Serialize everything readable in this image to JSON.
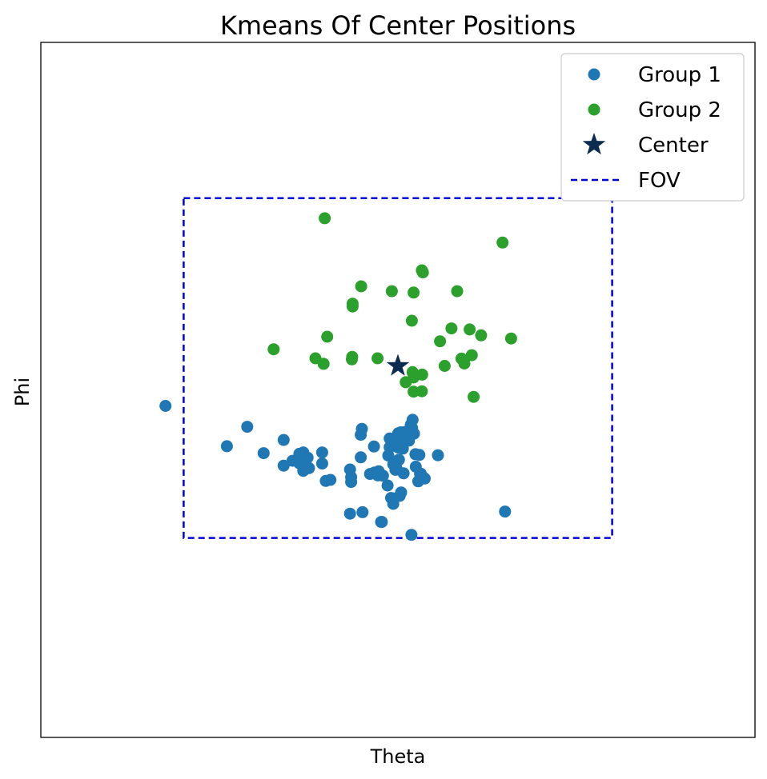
{
  "chart_data": {
    "type": "scatter",
    "title": "Kmeans Of Center Positions",
    "xlabel": "Theta",
    "ylabel": "Phi",
    "xlim": [
      -1,
      1
    ],
    "ylim": [
      -1,
      1
    ],
    "grid": false,
    "ticks": false,
    "legend_position": "top-right",
    "series": [
      {
        "name": "Group 1",
        "color": "#1f77b4",
        "marker": "circle",
        "points": [
          [
            -0.651,
            -0.046
          ],
          [
            -0.422,
            -0.106
          ],
          [
            -0.479,
            -0.162
          ],
          [
            -0.376,
            -0.182
          ],
          [
            -0.32,
            -0.144
          ],
          [
            -0.32,
            -0.218
          ],
          [
            -0.295,
            -0.204
          ],
          [
            -0.265,
            -0.18
          ],
          [
            -0.261,
            -0.195
          ],
          [
            -0.212,
            -0.18
          ],
          [
            -0.276,
            -0.184
          ],
          [
            -0.253,
            -0.195
          ],
          [
            -0.276,
            -0.211
          ],
          [
            -0.265,
            -0.233
          ],
          [
            -0.249,
            -0.225
          ],
          [
            -0.212,
            -0.212
          ],
          [
            -0.202,
            -0.262
          ],
          [
            -0.189,
            -0.259
          ],
          [
            -0.134,
            -0.229
          ],
          [
            -0.131,
            -0.251
          ],
          [
            -0.131,
            -0.265
          ],
          [
            -0.104,
            -0.194
          ],
          [
            -0.104,
            -0.129
          ],
          [
            -0.101,
            -0.112
          ],
          [
            -0.067,
            -0.163
          ],
          [
            -0.066,
            -0.238
          ],
          [
            -0.078,
            -0.242
          ],
          [
            -0.054,
            -0.234
          ],
          [
            -0.056,
            -0.246
          ],
          [
            -0.042,
            -0.247
          ],
          [
            -0.029,
            -0.275
          ],
          [
            -0.019,
            -0.311
          ],
          [
            -0.013,
            -0.328
          ],
          [
            -0.007,
            -0.23
          ],
          [
            -0.027,
            -0.189
          ],
          [
            -0.023,
            -0.165
          ],
          [
            -0.023,
            -0.14
          ],
          [
            -0.013,
            -0.214
          ],
          [
            0.001,
            -0.166
          ],
          [
            0.014,
            -0.169
          ],
          [
            0.003,
            -0.201
          ],
          [
            -0.004,
            -0.226
          ],
          [
            0.016,
            -0.24
          ],
          [
            0.031,
            -0.146
          ],
          [
            0.036,
            -0.1
          ],
          [
            0.041,
            -0.086
          ],
          [
            0.04,
            -0.11
          ],
          [
            0.045,
            -0.126
          ],
          [
            0.049,
            -0.185
          ],
          [
            0.02,
            -0.121
          ],
          [
            0.05,
            -0.221
          ],
          [
            0.062,
            -0.242
          ],
          [
            0.072,
            -0.253
          ],
          [
            0.075,
            -0.255
          ],
          [
            0.064,
            -0.241
          ],
          [
            0.057,
            -0.263
          ],
          [
            0.06,
            -0.187
          ],
          [
            0.005,
            -0.305
          ],
          [
            0.009,
            -0.295
          ],
          [
            -0.015,
            -0.312
          ],
          [
            -0.099,
            -0.352
          ],
          [
            -0.134,
            -0.356
          ],
          [
            -0.045,
            -0.38
          ],
          [
            -0.047,
            -0.38
          ],
          [
            0.038,
            -0.417
          ],
          [
            0.3,
            -0.35
          ],
          [
            0.112,
            -0.188
          ],
          [
            0.007,
            -0.159
          ],
          [
            0.001,
            -0.125
          ],
          [
            -0.004,
            -0.148
          ],
          [
            0.017,
            -0.134
          ],
          [
            0.008,
            -0.122
          ]
        ]
      },
      {
        "name": "Group 2",
        "color": "#2ca02c",
        "marker": "circle",
        "points": [
          [
            -0.205,
            0.494
          ],
          [
            0.293,
            0.424
          ],
          [
            -0.103,
            0.298
          ],
          [
            0.07,
            0.338
          ],
          [
            0.067,
            0.344
          ],
          [
            -0.017,
            0.284
          ],
          [
            0.044,
            0.28
          ],
          [
            0.166,
            0.284
          ],
          [
            -0.127,
            0.248
          ],
          [
            -0.127,
            0.24
          ],
          [
            0.039,
            0.199
          ],
          [
            0.15,
            0.177
          ],
          [
            0.201,
            0.174
          ],
          [
            0.233,
            0.157
          ],
          [
            0.317,
            0.148
          ],
          [
            -0.198,
            0.153
          ],
          [
            0.118,
            0.14
          ],
          [
            0.207,
            0.1
          ],
          [
            -0.348,
            0.117
          ],
          [
            -0.231,
            0.091
          ],
          [
            -0.128,
            0.095
          ],
          [
            -0.129,
            0.088
          ],
          [
            -0.057,
            0.091
          ],
          [
            -0.208,
            0.075
          ],
          [
            0.131,
            0.069
          ],
          [
            0.178,
            0.09
          ],
          [
            0.186,
            0.076
          ],
          [
            0.041,
            0.051
          ],
          [
            0.068,
            0.044
          ],
          [
            0.044,
            0.036
          ],
          [
            0.022,
            0.022
          ],
          [
            0.212,
            -0.02
          ],
          [
            0.044,
            -0.005
          ],
          [
            0.067,
            -0.004
          ]
        ]
      },
      {
        "name": "Center",
        "color": "#0b2b4f",
        "marker": "star",
        "points": [
          [
            0.0,
            0.069
          ]
        ]
      },
      {
        "name": "FOV",
        "color": "#0000dd",
        "marker": "dashed-line",
        "points": [
          [
            -0.6,
            0.552
          ],
          [
            0.6,
            0.552
          ],
          [
            0.6,
            -0.426
          ],
          [
            -0.6,
            -0.426
          ],
          [
            -0.6,
            0.552
          ]
        ]
      }
    ]
  }
}
